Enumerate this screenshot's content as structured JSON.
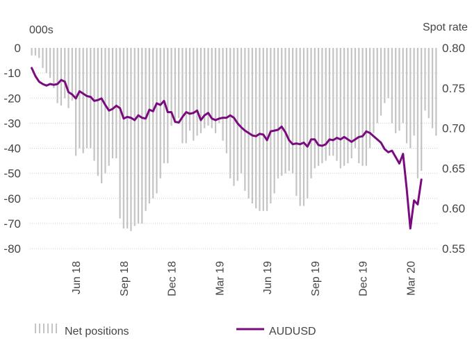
{
  "chart_data": {
    "type": "bar+line",
    "left_axis": {
      "unit": "000s",
      "ticks": [
        "0",
        "-10",
        "-20",
        "-30",
        "-40",
        "-50",
        "-60",
        "-70",
        "-80"
      ],
      "range": [
        -80,
        0
      ]
    },
    "right_axis": {
      "unit": "Spot rate",
      "ticks": [
        "0.80",
        "0.75",
        "0.70",
        "0.65",
        "0.60",
        "0.55"
      ],
      "range": [
        0.55,
        0.8
      ]
    },
    "x_labels": [
      "Jun 18",
      "Sep 18",
      "Dec 18",
      "Mar 19",
      "Jun 19",
      "Sep 19",
      "Dec 19",
      "Mar 20"
    ],
    "x_label_week_index": [
      12,
      25,
      38,
      51,
      64,
      77,
      90,
      103
    ],
    "legend": [
      "Net positions",
      "AUDUSD"
    ],
    "colors": {
      "bars": "#c4c4c4",
      "line": "#7a0b7e",
      "grid": "#cccccc"
    },
    "series": [
      {
        "name": "Net positions",
        "kind": "bar",
        "axis": "left",
        "values": [
          -3,
          -3,
          -4,
          -8,
          -10,
          -12,
          -16,
          -22,
          -23,
          -20,
          -24,
          -21,
          -43,
          -40,
          -42,
          -40,
          -40,
          -45,
          -51,
          -54,
          -50,
          -47,
          -44,
          -44,
          -68,
          -72,
          -72,
          -73,
          -71,
          -70,
          -70,
          -65,
          -62,
          -60,
          -58,
          -52,
          -46,
          -46,
          -31,
          -30,
          -28,
          -38,
          -38,
          -33,
          -37,
          -35,
          -34,
          -32,
          -31,
          -32,
          -34,
          -30,
          -37,
          -42,
          -52,
          -55,
          -53,
          -50,
          -57,
          -60,
          -62,
          -64,
          -65,
          -65,
          -65,
          -62,
          -58,
          -52,
          -51,
          -50,
          -49,
          -50,
          -59,
          -63,
          -63,
          -60,
          -52,
          -48,
          -47,
          -46,
          -45,
          -43,
          -43,
          -45,
          -48,
          -47,
          -46,
          -44,
          -40,
          -46,
          -47,
          -47,
          -40,
          -34,
          -30,
          -27,
          -22,
          -20,
          -30,
          -34,
          -33,
          -30,
          -38,
          -40,
          -35,
          -52,
          -49,
          -25,
          -28,
          -32,
          -35
        ]
      },
      {
        "name": "AUDUSD",
        "kind": "line",
        "axis": "right",
        "values": [
          0.775,
          0.765,
          0.758,
          0.755,
          0.753,
          0.755,
          0.754,
          0.755,
          0.76,
          0.758,
          0.745,
          0.742,
          0.737,
          0.746,
          0.743,
          0.74,
          0.739,
          0.734,
          0.735,
          0.737,
          0.729,
          0.722,
          0.724,
          0.728,
          0.725,
          0.712,
          0.714,
          0.713,
          0.71,
          0.716,
          0.713,
          0.712,
          0.723,
          0.721,
          0.731,
          0.729,
          0.734,
          0.72,
          0.72,
          0.708,
          0.707,
          0.714,
          0.72,
          0.718,
          0.719,
          0.722,
          0.71,
          0.716,
          0.719,
          0.712,
          0.71,
          0.712,
          0.713,
          0.713,
          0.716,
          0.713,
          0.706,
          0.701,
          0.697,
          0.694,
          0.691,
          0.69,
          0.693,
          0.692,
          0.685,
          0.696,
          0.697,
          0.698,
          0.702,
          0.695,
          0.685,
          0.68,
          0.681,
          0.68,
          0.682,
          0.677,
          0.686,
          0.686,
          0.679,
          0.678,
          0.68,
          0.686,
          0.685,
          0.688,
          0.686,
          0.689,
          0.686,
          0.683,
          0.686,
          0.689,
          0.69,
          0.696,
          0.694,
          0.69,
          0.686,
          0.682,
          0.674,
          0.67,
          0.672,
          0.664,
          0.656,
          0.668,
          0.625,
          0.575,
          0.61,
          0.605,
          0.636
        ]
      }
    ]
  }
}
